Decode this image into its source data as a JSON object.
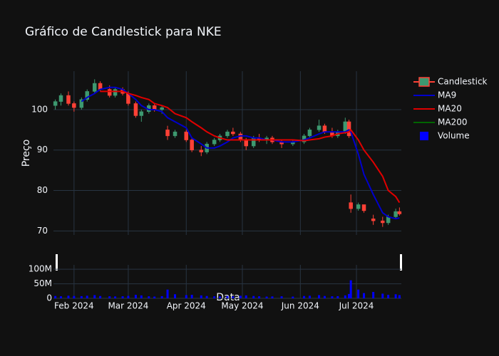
{
  "chart_data": {
    "type": "candlestick",
    "title": "Gráfico de Candlestick para NKE",
    "x_label": "Data",
    "y_label": "Preço",
    "x": [
      "2024-01-22",
      "2024-01-25",
      "2024-01-29",
      "2024-02-01",
      "2024-02-05",
      "2024-02-08",
      "2024-02-12",
      "2024-02-15",
      "2024-02-20",
      "2024-02-23",
      "2024-02-27",
      "2024-03-01",
      "2024-03-05",
      "2024-03-08",
      "2024-03-12",
      "2024-03-15",
      "2024-03-19",
      "2024-03-22",
      "2024-03-26",
      "2024-04-01",
      "2024-04-04",
      "2024-04-09",
      "2024-04-12",
      "2024-04-16",
      "2024-04-19",
      "2024-04-23",
      "2024-04-26",
      "2024-04-30",
      "2024-05-03",
      "2024-05-07",
      "2024-05-10",
      "2024-05-14",
      "2024-05-17",
      "2024-05-22",
      "2024-05-28",
      "2024-06-03",
      "2024-06-06",
      "2024-06-11",
      "2024-06-14",
      "2024-06-18",
      "2024-06-21",
      "2024-06-25",
      "2024-06-27",
      "2024-06-28",
      "2024-07-02",
      "2024-07-05",
      "2024-07-10",
      "2024-07-15",
      "2024-07-18",
      "2024-07-22",
      "2024-07-24"
    ],
    "series": [
      {
        "name": "Candlestick",
        "type": "candlestick",
        "increasing_color": "#3d9970",
        "decreasing_color": "#ff4136",
        "open": [
          101,
          102,
          103.5,
          101.5,
          100.5,
          102.5,
          104.5,
          106.5,
          105,
          103.5,
          105,
          104,
          101.5,
          98.5,
          99.5,
          101,
          100,
          95,
          93.5,
          94.5,
          92.5,
          90,
          89.5,
          91.5,
          92.5,
          93.5,
          94.5,
          94,
          92.5,
          91,
          93,
          92.5,
          93,
          92,
          91.5,
          92,
          93.5,
          95,
          96,
          94.5,
          93.5,
          94.5,
          97,
          77,
          75.5,
          76.5,
          73,
          72.5,
          72,
          73.5,
          74.8
        ],
        "high": [
          102.5,
          104,
          104.5,
          102,
          103,
          105,
          107.5,
          107,
          106,
          105.5,
          105.5,
          104.5,
          102,
          100,
          101.5,
          101.5,
          101,
          96,
          95,
          95,
          93,
          91,
          92,
          93,
          94,
          95,
          95.5,
          94.5,
          93,
          93.5,
          94,
          93.5,
          93.5,
          92.5,
          92.5,
          94,
          95.5,
          97.5,
          96.5,
          95.5,
          95,
          98,
          97.5,
          79,
          77,
          76.5,
          74,
          73.5,
          74,
          75.5,
          75.8
        ],
        "low": [
          100,
          101,
          101,
          99.5,
          100,
          102,
          104,
          104.5,
          103,
          103,
          103.5,
          101,
          98,
          97,
          99,
          99.5,
          99,
          92.5,
          93,
          92,
          89.5,
          88.5,
          89,
          91,
          92,
          93,
          93.5,
          92,
          90,
          90.5,
          92,
          91.5,
          91.5,
          90.5,
          91,
          91.5,
          93,
          94.5,
          94,
          93,
          93,
          94,
          93,
          74.5,
          75,
          74.5,
          71.5,
          71,
          71.5,
          73,
          73.8
        ],
        "close": [
          102,
          103.5,
          101.5,
          100.5,
          102.5,
          104.5,
          106.5,
          105,
          103.5,
          105,
          104,
          101.5,
          98.5,
          99.5,
          101,
          100,
          100.5,
          93.5,
          94.5,
          92.5,
          90,
          89.5,
          91.5,
          92.5,
          93.5,
          94.5,
          94,
          92.5,
          91,
          93,
          92.5,
          93,
          92,
          91.5,
          92,
          93.5,
          95,
          96,
          94.5,
          93.5,
          94.5,
          97,
          93.5,
          75.5,
          76.5,
          75,
          72.5,
          72,
          73.5,
          74.8,
          74.2
        ]
      },
      {
        "name": "MA9",
        "type": "line",
        "color": "#0000cd",
        "values": [
          null,
          null,
          null,
          null,
          102,
          103,
          104,
          105,
          105.5,
          105.5,
          105,
          104,
          102.5,
          101,
          100,
          100,
          99.5,
          98,
          97,
          95.5,
          93,
          91.5,
          90.5,
          90.5,
          91,
          92,
          93,
          93.5,
          93.5,
          93,
          93,
          92.5,
          92.5,
          92,
          92,
          92.5,
          93,
          94,
          94.5,
          94.5,
          94.5,
          94.5,
          95,
          94.5,
          89,
          84,
          79,
          74.5,
          73.5,
          73,
          73.2
        ]
      },
      {
        "name": "MA20",
        "type": "line",
        "color": "#e00000",
        "values": [
          null,
          null,
          null,
          null,
          null,
          null,
          null,
          104.5,
          104.5,
          104.5,
          104.5,
          104,
          103.5,
          103,
          102.5,
          101.5,
          101,
          100.5,
          99,
          98,
          97,
          95.5,
          94.5,
          93.5,
          93,
          92.5,
          92.5,
          92.5,
          92.5,
          92.5,
          92.5,
          92.5,
          92.5,
          92.5,
          92.5,
          92.3,
          92.5,
          92.8,
          93.2,
          93.5,
          94,
          94.3,
          94.5,
          95,
          92.5,
          90,
          87,
          83.5,
          80,
          78.5,
          77
        ]
      },
      {
        "name": "MA200",
        "type": "line",
        "color": "#006400",
        "values": [
          null,
          null,
          null,
          null,
          null,
          null,
          null,
          null,
          null,
          null,
          null,
          null,
          null,
          null,
          null,
          null,
          null,
          null,
          null,
          null,
          null,
          null,
          null,
          null,
          null,
          null,
          null,
          null,
          null,
          null,
          null,
          null,
          null,
          null,
          null,
          null,
          null,
          null,
          null,
          null,
          null,
          null,
          null,
          null,
          null,
          null,
          null,
          null,
          null,
          null,
          null
        ]
      },
      {
        "name": "Volume",
        "type": "bar",
        "color": "#0000ff",
        "axis": "y2",
        "values": [
          8000000,
          7000000,
          9000000,
          8000000,
          7500000,
          9000000,
          11000000,
          8000000,
          7000000,
          6500000,
          7000000,
          8500000,
          12000000,
          10000000,
          7000000,
          6000000,
          7500000,
          30000000,
          14000000,
          11000000,
          12000000,
          10000000,
          8000000,
          7000000,
          6500000,
          8000000,
          7000000,
          9000000,
          10000000,
          8000000,
          7000000,
          6000000,
          6500000,
          7000000,
          6000000,
          8000000,
          9000000,
          11000000,
          8000000,
          7000000,
          7500000,
          10000000,
          15000000,
          62000000,
          30000000,
          18000000,
          22000000,
          16000000,
          12000000,
          14000000,
          11000000
        ]
      }
    ],
    "xlim": [
      "2024-01-21",
      "2024-07-25"
    ],
    "xticks": [
      {
        "value": "2024-02-01",
        "label": "Feb 2024"
      },
      {
        "value": "2024-03-01",
        "label": "Mar 2024"
      },
      {
        "value": "2024-04-01",
        "label": "Apr 2024"
      },
      {
        "value": "2024-05-01",
        "label": "May 2024"
      },
      {
        "value": "2024-06-01",
        "label": "Jun 2024"
      },
      {
        "value": "2024-07-01",
        "label": "Jul 2024"
      }
    ],
    "ylim": [
      69,
      109.5
    ],
    "yticks": [
      70,
      80,
      90,
      100
    ],
    "y2lim": [
      0,
      115000000
    ],
    "y2ticks": [
      0,
      {
        "value": 50000000,
        "label": "50M"
      },
      {
        "value": 100000000,
        "label": "100M"
      }
    ],
    "grid": true,
    "legend": "top-right"
  }
}
